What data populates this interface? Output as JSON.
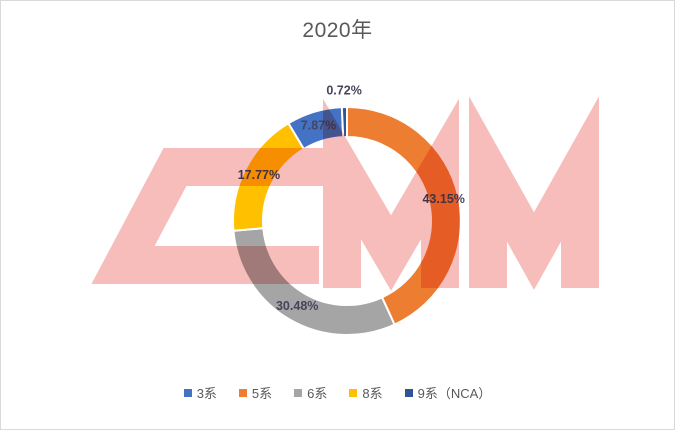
{
  "window": {
    "background_color": "#FFFFFF",
    "border_color": "#D9D9D9"
  },
  "watermark": {
    "text": "SMM",
    "color": "#F7BDBA"
  },
  "chart_data": {
    "type": "donut",
    "title": "2020年",
    "title_color": "#595959",
    "unit": "%",
    "categories": [
      "3系",
      "5系",
      "6系",
      "8系",
      "9系（NCA）"
    ],
    "series": [
      {
        "name": "3系",
        "value": 7.87,
        "label": "7.87%",
        "color": "#4472C4"
      },
      {
        "name": "5系",
        "value": 43.15,
        "label": "43.15%",
        "color": "#ED7D31"
      },
      {
        "name": "6系",
        "value": 30.48,
        "label": "30.48%",
        "color": "#A5A5A5"
      },
      {
        "name": "8系",
        "value": 17.77,
        "label": "17.77%",
        "color": "#FFC000"
      },
      {
        "name": "9系（NCA）",
        "value": 0.72,
        "label": "0.72%",
        "color": "#2F5597"
      }
    ],
    "clockwise_order_from_top": [
      "5系",
      "6系",
      "8系",
      "3系",
      "9系（NCA）"
    ],
    "donut_hole_ratio": 0.74,
    "segment_border_color": "#FFFFFF",
    "data_label_color": "#45455C",
    "legend_position": "bottom",
    "legend_text_color": "#595959",
    "grid": false
  }
}
